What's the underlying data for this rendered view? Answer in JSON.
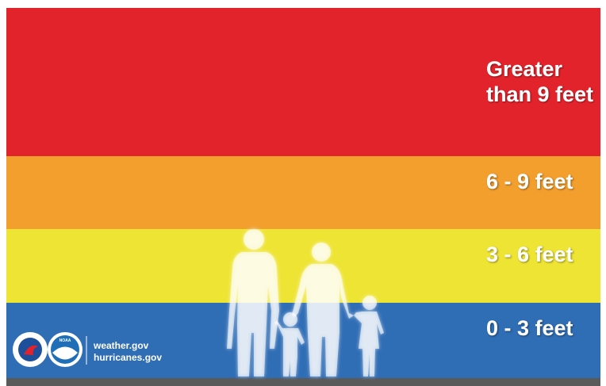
{
  "bands": [
    {
      "lines": [
        "Greater",
        "than 9 feet"
      ]
    },
    {
      "lines": [
        "6 - 9 feet"
      ]
    },
    {
      "lines": [
        "3 - 6 feet"
      ]
    },
    {
      "lines": [
        "0 - 3 feet"
      ]
    }
  ],
  "footer": {
    "logo_text": "NOAA",
    "links": [
      "weather.gov",
      "hurricanes.gov"
    ]
  }
}
